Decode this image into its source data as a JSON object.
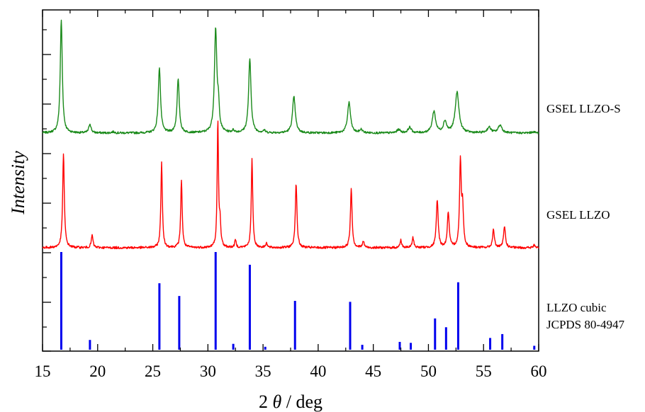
{
  "chart_data": {
    "type": "line",
    "title": "",
    "xlabel_parts": {
      "prefix": "2 ",
      "symbol": "θ",
      "suffix": " / deg"
    },
    "ylabel": "Intensity",
    "xlim": [
      15,
      60
    ],
    "xticks": [
      "15",
      "20",
      "25",
      "30",
      "35",
      "40",
      "45",
      "50",
      "55",
      "60"
    ],
    "y_tick_labels_shown": false,
    "grid": false,
    "legend": "none",
    "series": [
      {
        "name": "GSEL LLZO-S",
        "label_lines": [
          "GSEL LLZO-S"
        ],
        "color": "#1a8a1a",
        "kind": "profile",
        "peaks": [
          {
            "x": 16.7,
            "h": 1.0,
            "w": 0.11
          },
          {
            "x": 19.3,
            "h": 0.08,
            "w": 0.12
          },
          {
            "x": 21.4,
            "h": 0.01,
            "w": 0.15
          },
          {
            "x": 25.6,
            "h": 0.58,
            "w": 0.12
          },
          {
            "x": 27.3,
            "h": 0.47,
            "w": 0.12
          },
          {
            "x": 30.7,
            "h": 0.91,
            "w": 0.13
          },
          {
            "x": 30.95,
            "h": 0.2,
            "w": 0.1
          },
          {
            "x": 32.3,
            "h": 0.02,
            "w": 0.12
          },
          {
            "x": 33.8,
            "h": 0.65,
            "w": 0.13
          },
          {
            "x": 35.1,
            "h": 0.02,
            "w": 0.12
          },
          {
            "x": 37.8,
            "h": 0.32,
            "w": 0.15
          },
          {
            "x": 42.8,
            "h": 0.27,
            "w": 0.16
          },
          {
            "x": 43.9,
            "h": 0.03,
            "w": 0.14
          },
          {
            "x": 47.3,
            "h": 0.03,
            "w": 0.18
          },
          {
            "x": 48.3,
            "h": 0.05,
            "w": 0.17
          },
          {
            "x": 50.5,
            "h": 0.19,
            "w": 0.18
          },
          {
            "x": 51.5,
            "h": 0.1,
            "w": 0.17
          },
          {
            "x": 52.6,
            "h": 0.36,
            "w": 0.2
          },
          {
            "x": 55.5,
            "h": 0.05,
            "w": 0.2
          },
          {
            "x": 56.5,
            "h": 0.07,
            "w": 0.2
          },
          {
            "x": 59.5,
            "h": 0.01,
            "w": 0.2
          }
        ]
      },
      {
        "name": "GSEL LLZO",
        "label_lines": [
          "GSEL LLZO"
        ],
        "color": "#ff0000",
        "kind": "profile",
        "peaks": [
          {
            "x": 16.9,
            "h": 0.74,
            "w": 0.09
          },
          {
            "x": 19.5,
            "h": 0.1,
            "w": 0.09
          },
          {
            "x": 25.8,
            "h": 0.68,
            "w": 0.08
          },
          {
            "x": 27.6,
            "h": 0.54,
            "w": 0.08
          },
          {
            "x": 30.9,
            "h": 1.0,
            "w": 0.07
          },
          {
            "x": 31.1,
            "h": 0.18,
            "w": 0.08
          },
          {
            "x": 32.5,
            "h": 0.06,
            "w": 0.08
          },
          {
            "x": 34.0,
            "h": 0.7,
            "w": 0.08
          },
          {
            "x": 35.3,
            "h": 0.04,
            "w": 0.08
          },
          {
            "x": 38.0,
            "h": 0.51,
            "w": 0.09
          },
          {
            "x": 43.0,
            "h": 0.47,
            "w": 0.09
          },
          {
            "x": 44.1,
            "h": 0.05,
            "w": 0.09
          },
          {
            "x": 47.5,
            "h": 0.06,
            "w": 0.09
          },
          {
            "x": 48.6,
            "h": 0.08,
            "w": 0.09
          },
          {
            "x": 50.8,
            "h": 0.38,
            "w": 0.1
          },
          {
            "x": 51.8,
            "h": 0.28,
            "w": 0.1
          },
          {
            "x": 52.9,
            "h": 0.68,
            "w": 0.09
          },
          {
            "x": 53.1,
            "h": 0.3,
            "w": 0.09
          },
          {
            "x": 55.9,
            "h": 0.14,
            "w": 0.1
          },
          {
            "x": 56.9,
            "h": 0.17,
            "w": 0.1
          },
          {
            "x": 59.6,
            "h": 0.02,
            "w": 0.1
          }
        ]
      },
      {
        "name": "LLZO cubic JCPDS 80-4947",
        "label_lines": [
          "LLZO cubic",
          "JCPDS 80-4947"
        ],
        "color": "#0000ee",
        "kind": "sticks",
        "sticks": [
          {
            "x": 16.7,
            "h": 1.0
          },
          {
            "x": 19.3,
            "h": 0.1
          },
          {
            "x": 25.6,
            "h": 0.68
          },
          {
            "x": 27.4,
            "h": 0.55
          },
          {
            "x": 30.7,
            "h": 1.0
          },
          {
            "x": 32.3,
            "h": 0.06
          },
          {
            "x": 33.8,
            "h": 0.87
          },
          {
            "x": 35.2,
            "h": 0.03
          },
          {
            "x": 37.9,
            "h": 0.5
          },
          {
            "x": 42.9,
            "h": 0.49
          },
          {
            "x": 44.0,
            "h": 0.05
          },
          {
            "x": 47.4,
            "h": 0.08
          },
          {
            "x": 48.4,
            "h": 0.07
          },
          {
            "x": 50.6,
            "h": 0.32
          },
          {
            "x": 51.6,
            "h": 0.23
          },
          {
            "x": 52.7,
            "h": 0.69
          },
          {
            "x": 55.6,
            "h": 0.12
          },
          {
            "x": 56.7,
            "h": 0.16
          },
          {
            "x": 59.6,
            "h": 0.04
          }
        ]
      }
    ]
  }
}
